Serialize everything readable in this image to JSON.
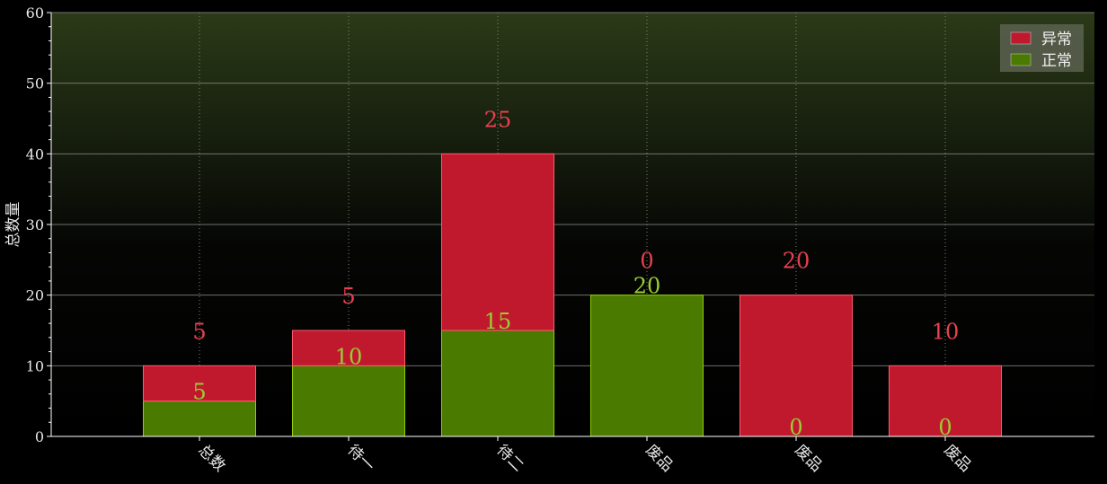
{
  "chart_data": {
    "type": "bar",
    "stacked": true,
    "categories": [
      "总数",
      "待一",
      "待二",
      "废品",
      "废品",
      "废品"
    ],
    "series": [
      {
        "name": "正常",
        "values": [
          5,
          10,
          15,
          20,
          0,
          0
        ],
        "color": "#4a7a00",
        "label_color": "#9acd32"
      },
      {
        "name": "异常",
        "values": [
          5,
          5,
          25,
          0,
          20,
          10
        ],
        "color": "#c0192e",
        "label_color": "#e8404f"
      }
    ],
    "ylabel": "总数量",
    "xlabel": "",
    "ylim": [
      0,
      60
    ],
    "yticks": [
      0,
      10,
      20,
      30,
      40,
      50,
      60
    ],
    "grid": true,
    "legend_position": "top-right",
    "background": {
      "top": "#2b3a18",
      "bottom": "#000000"
    }
  }
}
